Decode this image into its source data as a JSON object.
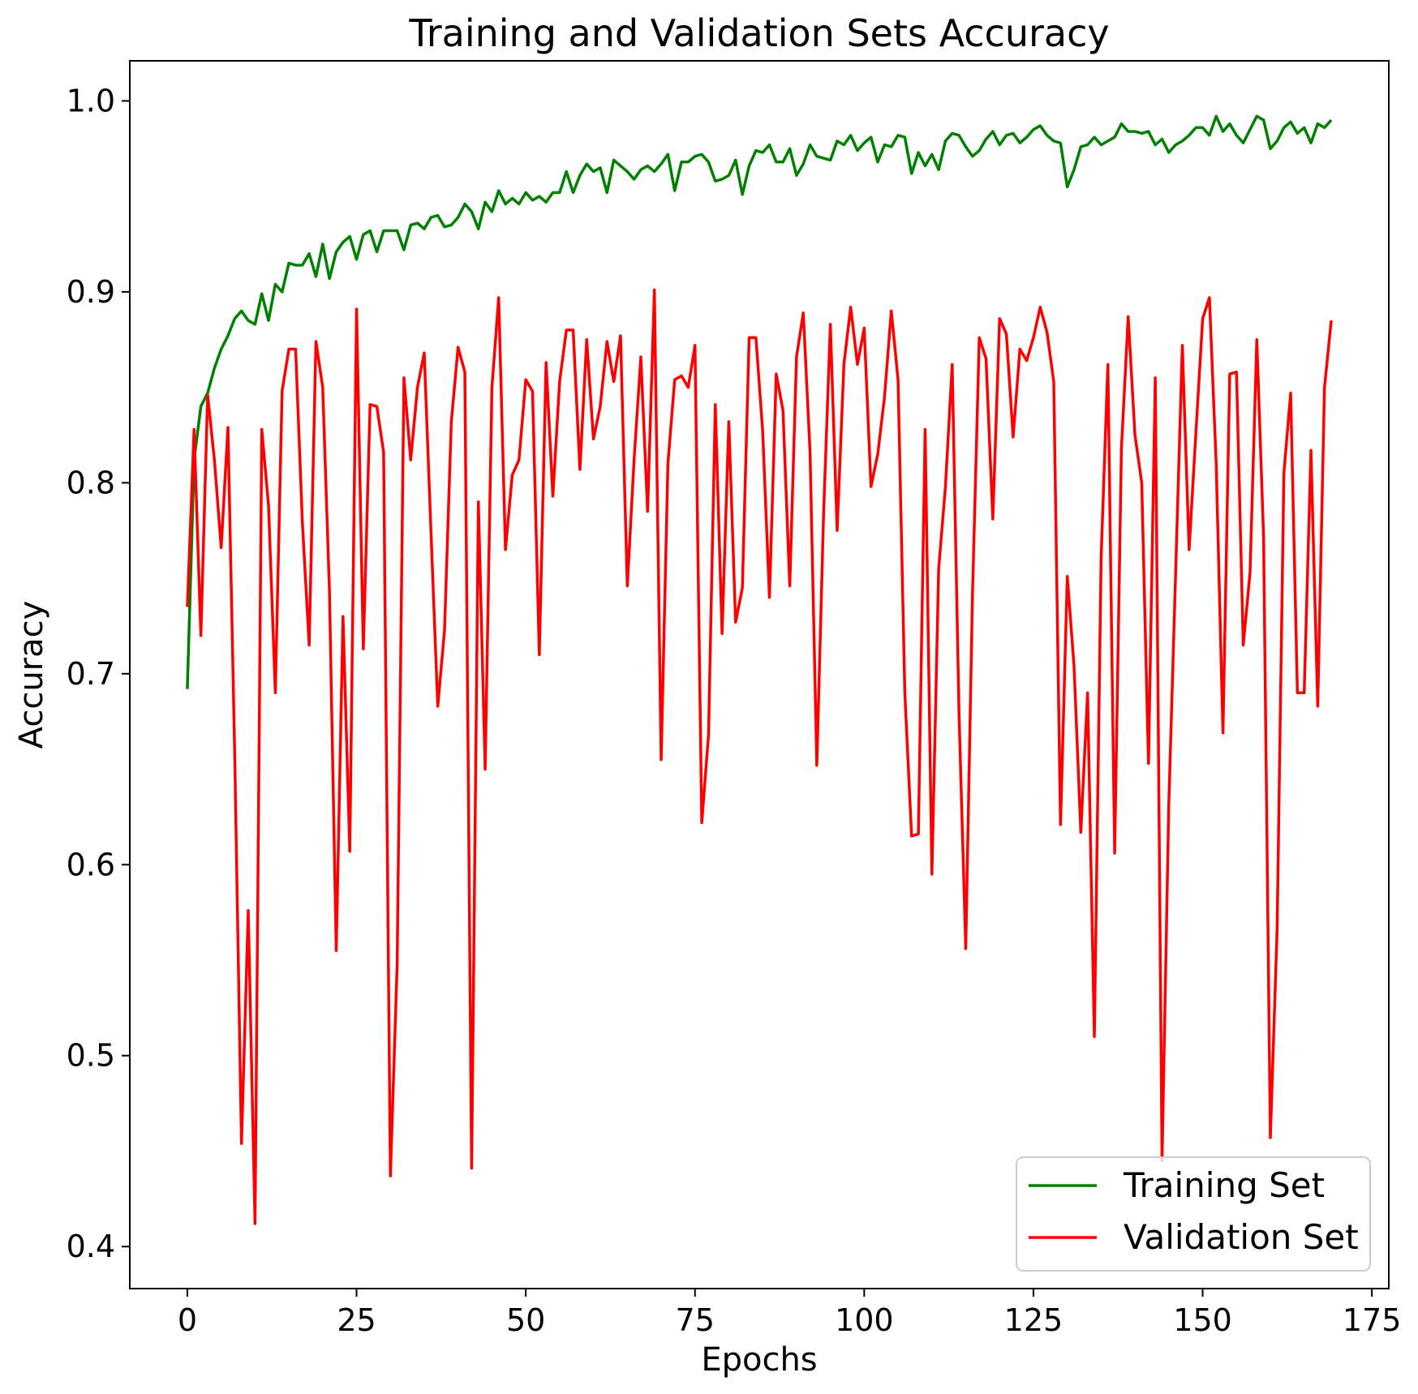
{
  "chart_data": {
    "type": "line",
    "title": "Training and Validation Sets Accuracy",
    "xlabel": "Epochs",
    "ylabel": "Accuracy",
    "xlim": [
      -8.5,
      177.5
    ],
    "ylim": [
      0.378,
      1.021
    ],
    "xticks": [
      0,
      25,
      50,
      75,
      100,
      125,
      150,
      175
    ],
    "yticks": [
      0.4,
      0.5,
      0.6,
      0.7,
      0.8,
      0.9,
      1.0
    ],
    "xtick_labels": [
      "0",
      "25",
      "50",
      "75",
      "100",
      "125",
      "150",
      "175"
    ],
    "ytick_labels": [
      "0.4",
      "0.5",
      "0.6",
      "0.7",
      "0.8",
      "0.9",
      "1.0"
    ],
    "grid": false,
    "legend_position": "lower-right",
    "series": [
      {
        "name": "Training Set",
        "color": "#008000",
        "x_start": 0,
        "values": [
          0.692,
          0.812,
          0.84,
          0.847,
          0.86,
          0.87,
          0.877,
          0.886,
          0.89,
          0.885,
          0.883,
          0.899,
          0.885,
          0.904,
          0.9,
          0.915,
          0.914,
          0.914,
          0.92,
          0.908,
          0.925,
          0.907,
          0.921,
          0.926,
          0.929,
          0.917,
          0.93,
          0.932,
          0.921,
          0.932,
          0.932,
          0.932,
          0.922,
          0.935,
          0.936,
          0.933,
          0.939,
          0.94,
          0.934,
          0.935,
          0.939,
          0.946,
          0.942,
          0.933,
          0.947,
          0.942,
          0.953,
          0.946,
          0.949,
          0.946,
          0.952,
          0.948,
          0.95,
          0.947,
          0.952,
          0.952,
          0.963,
          0.952,
          0.961,
          0.967,
          0.963,
          0.965,
          0.952,
          0.969,
          0.966,
          0.963,
          0.959,
          0.964,
          0.966,
          0.963,
          0.967,
          0.972,
          0.953,
          0.968,
          0.968,
          0.971,
          0.972,
          0.968,
          0.958,
          0.959,
          0.961,
          0.969,
          0.951,
          0.966,
          0.974,
          0.973,
          0.977,
          0.968,
          0.968,
          0.975,
          0.961,
          0.967,
          0.977,
          0.971,
          0.97,
          0.969,
          0.979,
          0.977,
          0.982,
          0.974,
          0.978,
          0.981,
          0.968,
          0.977,
          0.976,
          0.982,
          0.981,
          0.962,
          0.973,
          0.966,
          0.972,
          0.964,
          0.979,
          0.983,
          0.982,
          0.976,
          0.971,
          0.974,
          0.98,
          0.984,
          0.977,
          0.982,
          0.983,
          0.978,
          0.981,
          0.985,
          0.987,
          0.982,
          0.979,
          0.978,
          0.955,
          0.964,
          0.976,
          0.977,
          0.981,
          0.977,
          0.979,
          0.981,
          0.988,
          0.984,
          0.984,
          0.983,
          0.984,
          0.977,
          0.98,
          0.973,
          0.977,
          0.979,
          0.982,
          0.986,
          0.986,
          0.982,
          0.992,
          0.984,
          0.988,
          0.982,
          0.978,
          0.985,
          0.992,
          0.99,
          0.975,
          0.979,
          0.986,
          0.989,
          0.983,
          0.986,
          0.978,
          0.988,
          0.986,
          0.99
        ]
      },
      {
        "name": "Validation Set",
        "color": "#ff0000",
        "x_start": 0,
        "values": [
          0.735,
          0.828,
          0.72,
          0.846,
          0.812,
          0.766,
          0.829,
          0.658,
          0.454,
          0.576,
          0.412,
          0.828,
          0.788,
          0.69,
          0.848,
          0.87,
          0.87,
          0.779,
          0.715,
          0.874,
          0.85,
          0.743,
          0.555,
          0.73,
          0.607,
          0.891,
          0.713,
          0.841,
          0.84,
          0.816,
          0.437,
          0.548,
          0.855,
          0.812,
          0.85,
          0.868,
          0.774,
          0.683,
          0.723,
          0.832,
          0.871,
          0.858,
          0.441,
          0.79,
          0.65,
          0.85,
          0.897,
          0.765,
          0.804,
          0.812,
          0.854,
          0.848,
          0.71,
          0.863,
          0.793,
          0.853,
          0.88,
          0.88,
          0.807,
          0.875,
          0.823,
          0.84,
          0.874,
          0.853,
          0.877,
          0.746,
          0.812,
          0.866,
          0.785,
          0.901,
          0.655,
          0.81,
          0.854,
          0.856,
          0.85,
          0.872,
          0.622,
          0.668,
          0.841,
          0.721,
          0.832,
          0.727,
          0.745,
          0.876,
          0.876,
          0.827,
          0.74,
          0.857,
          0.838,
          0.746,
          0.866,
          0.889,
          0.816,
          0.652,
          0.784,
          0.883,
          0.775,
          0.862,
          0.892,
          0.862,
          0.881,
          0.798,
          0.815,
          0.845,
          0.89,
          0.854,
          0.69,
          0.615,
          0.616,
          0.828,
          0.595,
          0.755,
          0.798,
          0.862,
          0.68,
          0.556,
          0.742,
          0.876,
          0.865,
          0.781,
          0.886,
          0.878,
          0.824,
          0.87,
          0.864,
          0.876,
          0.892,
          0.879,
          0.853,
          0.621,
          0.751,
          0.704,
          0.617,
          0.69,
          0.51,
          0.761,
          0.862,
          0.606,
          0.818,
          0.887,
          0.825,
          0.8,
          0.653,
          0.855,
          0.445,
          0.632,
          0.752,
          0.872,
          0.765,
          0.826,
          0.886,
          0.897,
          0.81,
          0.669,
          0.857,
          0.858,
          0.715,
          0.753,
          0.875,
          0.772,
          0.457,
          0.566,
          0.805,
          0.847,
          0.69,
          0.69,
          0.817,
          0.683,
          0.85,
          0.885
        ]
      }
    ]
  }
}
